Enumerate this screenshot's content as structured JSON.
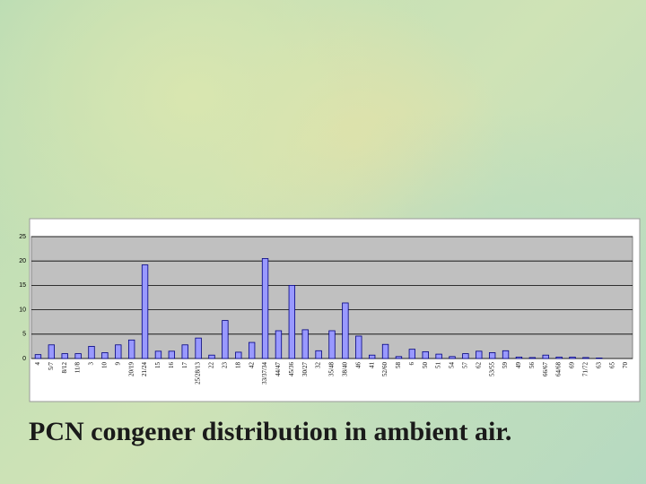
{
  "chart_data": {
    "type": "bar",
    "title": "PCN congener distribution in ambient air.",
    "categories": [
      "4",
      "5/7",
      "8/12",
      "11/8",
      "3",
      "10",
      "9",
      "20/19",
      "21/24",
      "15",
      "16",
      "17",
      "25/28/13",
      "22",
      "23",
      "18",
      "42",
      "33/37/34",
      "44/47",
      "45/36",
      "30/27",
      "32",
      "35/48",
      "38/40",
      "46",
      "41",
      "52/60",
      "58",
      "6",
      "50",
      "51",
      "54",
      "57",
      "62",
      "53/55",
      "59",
      "49",
      "56",
      "66/67",
      "64/68",
      "69",
      "71/72",
      "63",
      "65",
      "70"
    ],
    "values": [
      0.8,
      2.8,
      1.0,
      1.0,
      2.5,
      1.2,
      2.8,
      3.8,
      19.2,
      1.5,
      1.5,
      2.8,
      4.2,
      0.7,
      7.8,
      1.3,
      3.3,
      20.5,
      5.7,
      15.0,
      5.9,
      1.6,
      5.7,
      11.4,
      4.6,
      0.7,
      2.9,
      0.4,
      1.9,
      1.4,
      0.9,
      0.4,
      1.0,
      1.5,
      1.2,
      1.6,
      0.3,
      0.2,
      0.7,
      0.3,
      0.3,
      0.2,
      0.1,
      0,
      0
    ],
    "color": "#9999ff",
    "ylim": [
      0,
      25
    ],
    "yticks": [
      0,
      5,
      10,
      15,
      20,
      25
    ],
    "grid": true
  }
}
